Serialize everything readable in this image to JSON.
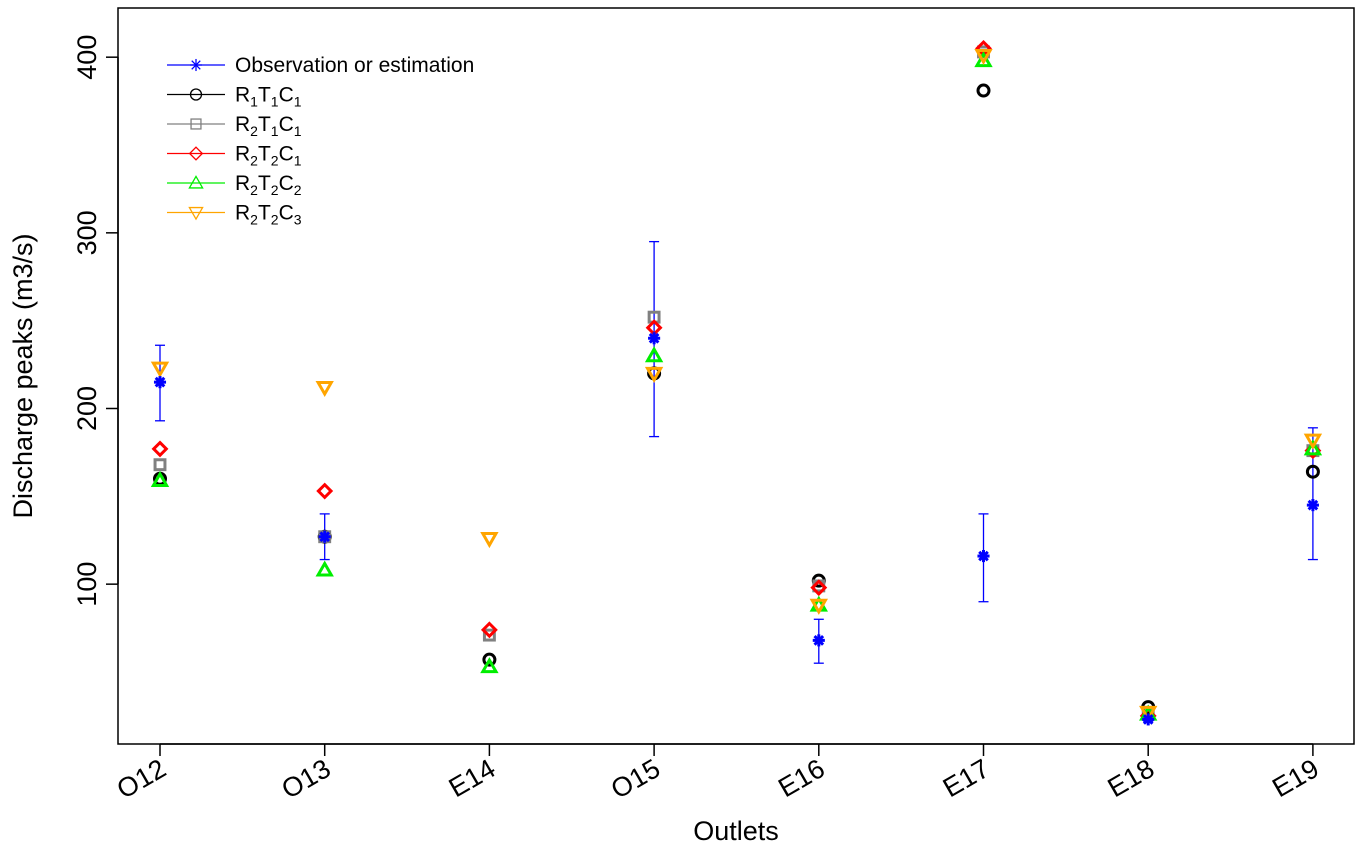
{
  "chart_data": {
    "type": "scatter",
    "xlabel": "Outlets",
    "ylabel": "Discharge peaks (m3/s)",
    "categories": [
      "O12",
      "O13",
      "E14",
      "O15",
      "E16",
      "E17",
      "E18",
      "E19"
    ],
    "ylim": [
      9,
      428
    ],
    "yticks": [
      100,
      200,
      300,
      400
    ],
    "grid": false,
    "legend_position": "top-left",
    "error_bars": {
      "series": "Observation or estimation",
      "lower": [
        193,
        114,
        null,
        184,
        55,
        90,
        22,
        114
      ],
      "upper": [
        236,
        140,
        null,
        295,
        80,
        140,
        24,
        189
      ]
    },
    "series": [
      {
        "name": "Observation or estimation",
        "label_main": "Observation or estimation",
        "label_sub": [
          "",
          "",
          ""
        ],
        "color": "#0000ff",
        "marker": "asterisk",
        "values": [
          215,
          127,
          null,
          240,
          68,
          116,
          23,
          145
        ]
      },
      {
        "name": "R1T1C1",
        "label_main": "RTC",
        "label_sub": [
          "1",
          "1",
          "1"
        ],
        "color": "#000000",
        "marker": "circle",
        "values": [
          160,
          127,
          57,
          220,
          102,
          381,
          30,
          164
        ]
      },
      {
        "name": "R2T1C1",
        "label_main": "RTC",
        "label_sub": [
          "2",
          "1",
          "1"
        ],
        "color": "#808080",
        "marker": "square",
        "values": [
          168,
          127,
          71,
          252,
          99,
          403,
          27,
          176
        ]
      },
      {
        "name": "R2T2C1",
        "label_main": "RTC",
        "label_sub": [
          "2",
          "2",
          "1"
        ],
        "color": "#ff0000",
        "marker": "diamond",
        "values": [
          177,
          153,
          74,
          246,
          98,
          405,
          25,
          176
        ]
      },
      {
        "name": "R2T2C2",
        "label_main": "RTC",
        "label_sub": [
          "2",
          "2",
          "2"
        ],
        "color": "#00ee00",
        "marker": "triangle-up",
        "values": [
          159,
          108,
          53,
          230,
          88,
          398,
          26,
          177
        ]
      },
      {
        "name": "R2T2C3",
        "label_main": "RTC",
        "label_sub": [
          "2",
          "2",
          "3"
        ],
        "color": "#ffa500",
        "marker": "triangle-down",
        "values": [
          223,
          212,
          126,
          220,
          88,
          401,
          27,
          182
        ]
      }
    ]
  }
}
